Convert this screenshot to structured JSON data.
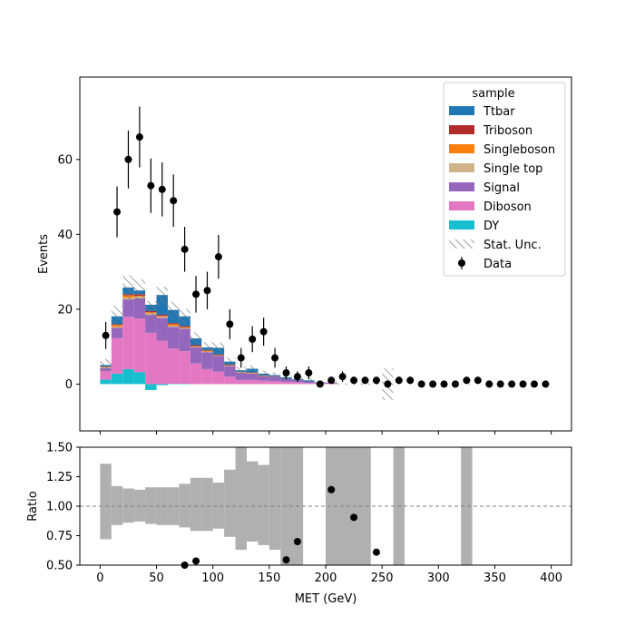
{
  "chart_data": [
    {
      "type": "bar",
      "stacked": true,
      "ylabel": "Events",
      "ylim": [
        -12.5,
        82
      ],
      "yticks": [
        0,
        20,
        40,
        60
      ],
      "xlim": [
        -18,
        418
      ],
      "bin_edges": [
        0,
        10,
        20,
        30,
        40,
        50,
        60,
        70,
        80,
        90,
        100,
        110,
        120,
        130,
        140,
        150,
        160,
        170,
        180,
        190,
        200,
        210,
        220,
        230,
        240,
        250,
        260,
        270,
        280,
        290,
        300,
        310,
        320,
        330,
        340,
        350,
        360,
        370,
        380,
        390,
        400
      ],
      "legend": {
        "title": "sample",
        "placement": "top-right",
        "entries": [
          {
            "label": "Ttbar",
            "color": "#1f77b4",
            "kind": "fill"
          },
          {
            "label": "Triboson",
            "color": "#b22a2a",
            "kind": "fill"
          },
          {
            "label": "Singleboson",
            "color": "#ff7f0e",
            "kind": "fill"
          },
          {
            "label": "Single top",
            "color": "#d2b48c",
            "kind": "fill"
          },
          {
            "label": "Signal",
            "color": "#9467bd",
            "kind": "fill"
          },
          {
            "label": "Diboson",
            "color": "#e377c2",
            "kind": "fill"
          },
          {
            "label": "DY",
            "color": "#17becf",
            "kind": "fill"
          },
          {
            "label": "Stat. Unc.",
            "color": "#888888",
            "kind": "hatch"
          },
          {
            "label": "Data",
            "color": "#000000",
            "kind": "marker"
          }
        ]
      },
      "series": [
        {
          "name": "DY",
          "color": "#17becf",
          "values": [
            1.2,
            2.8,
            4.0,
            3.2,
            -1.6,
            -0.3,
            0.1,
            0.1,
            0,
            0,
            0,
            0,
            0,
            0,
            0,
            0,
            0,
            0,
            0,
            0,
            0,
            0,
            0,
            0,
            0,
            0,
            0,
            0,
            0,
            0,
            0,
            0,
            0,
            0,
            0,
            0,
            0,
            0,
            0,
            0
          ]
        },
        {
          "name": "Diboson",
          "color": "#e377c2",
          "values": [
            2.3,
            9.5,
            14.0,
            14.3,
            13.7,
            11.6,
            9.4,
            8.7,
            5.5,
            4.0,
            3.3,
            2.0,
            1.1,
            1.1,
            0.9,
            0.8,
            0.6,
            0.5,
            0.3,
            0.2,
            0.2,
            0,
            0,
            0,
            0,
            0,
            0,
            0,
            0,
            0,
            0,
            0,
            0,
            0,
            0,
            0,
            0,
            0,
            0,
            0
          ]
        },
        {
          "name": "Signal",
          "color": "#9467bd",
          "values": [
            0.8,
            2.7,
            4.6,
            5.4,
            4.8,
            6.1,
            5.8,
            6.0,
            4.3,
            4.5,
            4.2,
            2.8,
            1.9,
            1.7,
            1.2,
            1.2,
            0.7,
            0.6,
            0.4,
            0.2,
            0.2,
            0,
            0,
            0,
            0,
            0,
            0,
            0,
            0,
            0,
            0,
            0,
            0,
            0,
            0,
            0,
            0,
            0,
            0,
            0
          ]
        },
        {
          "name": "Single top",
          "color": "#d2b48c",
          "values": [
            0.2,
            0.3,
            0.5,
            0.5,
            0.4,
            0.3,
            0.3,
            0.2,
            0.2,
            0.2,
            0.1,
            0.1,
            0.1,
            0.1,
            0,
            0,
            0,
            0,
            0,
            0,
            0,
            0,
            0,
            0,
            0,
            0,
            0,
            0,
            0,
            0,
            0,
            0,
            0,
            0,
            0,
            0,
            0,
            0,
            0,
            0
          ]
        },
        {
          "name": "Singleboson",
          "color": "#ff7f0e",
          "values": [
            0.1,
            0.5,
            0.6,
            0.2,
            0.3,
            0.2,
            0.4,
            0.2,
            0.1,
            0.2,
            0.1,
            0.1,
            0.1,
            0.1,
            0.1,
            0,
            0,
            0,
            0,
            0,
            0,
            0,
            0,
            0,
            0,
            0,
            0,
            0,
            0,
            0,
            0,
            0,
            0,
            0,
            0,
            0,
            0,
            0,
            0,
            0
          ]
        },
        {
          "name": "Triboson",
          "color": "#b22a2a",
          "values": [
            0.1,
            0.2,
            0.3,
            0.4,
            0.3,
            0.3,
            0.3,
            0.3,
            0.3,
            0.2,
            0.2,
            0.2,
            0.1,
            0.1,
            0.1,
            0.1,
            0.1,
            0,
            0,
            0,
            0,
            0,
            0,
            0,
            0,
            0,
            0,
            0,
            0,
            0,
            0,
            0,
            0,
            0,
            0,
            0,
            0,
            0,
            0,
            0
          ]
        },
        {
          "name": "Ttbar",
          "color": "#1f77b4",
          "values": [
            0.4,
            2.1,
            1.8,
            1.0,
            1.7,
            5.3,
            3.5,
            2.6,
            1.8,
            0.7,
            1.8,
            0.8,
            0.4,
            1.0,
            0.5,
            0.3,
            0.4,
            0.2,
            0.3,
            0.1,
            0,
            0,
            0,
            0,
            0,
            0,
            0,
            0,
            0,
            0,
            0,
            0,
            0,
            0,
            0,
            0,
            0,
            0,
            0,
            0
          ]
        }
      ],
      "stat_unc": [
        1.6,
        2.8,
        3.3,
        3.0,
        2.6,
        2.5,
        2.2,
        2.0,
        1.6,
        1.4,
        1.4,
        1.1,
        0.9,
        0.9,
        0.8,
        0.7,
        0.5,
        0.4,
        0.4,
        0.3,
        0.3,
        0.2,
        0.2,
        0.2,
        0.2,
        4.2,
        0,
        0,
        0,
        0,
        0,
        0,
        0.1,
        0,
        0,
        0,
        0,
        0,
        0,
        0
      ],
      "data": {
        "name": "Data",
        "x": [
          5,
          15,
          25,
          35,
          45,
          55,
          65,
          75,
          85,
          95,
          105,
          115,
          125,
          135,
          145,
          155,
          165,
          175,
          185,
          195,
          205,
          215,
          225,
          235,
          245,
          255,
          265,
          275,
          285,
          295,
          305,
          315,
          325,
          335,
          345,
          355,
          365,
          375,
          385,
          395
        ],
        "y": [
          13,
          46,
          60,
          66,
          53,
          52,
          49,
          36,
          24,
          25,
          34,
          16,
          7,
          12,
          14,
          7,
          3,
          2,
          3,
          0,
          1,
          2,
          1,
          1,
          1,
          0,
          1,
          1,
          0,
          0,
          0,
          0,
          1,
          1,
          0,
          0,
          0,
          0,
          0,
          0
        ]
      }
    },
    {
      "type": "scatter",
      "xlabel": "MET (GeV)",
      "ylabel": "Ratio",
      "ylim": [
        0.5,
        1.5
      ],
      "yticks": [
        "0.50",
        "0.75",
        "1.00",
        "1.25",
        "1.50"
      ],
      "xticks": [
        "0",
        "50",
        "100",
        "150",
        "200",
        "250",
        "300",
        "350",
        "400"
      ],
      "xtick_values": [
        0,
        50,
        100,
        150,
        200,
        250,
        300,
        350,
        400
      ],
      "reference_line": 1.0,
      "band_color": "#b0b0b0",
      "unc_band": [
        [
          0,
          10,
          0.72,
          1.36
        ],
        [
          10,
          20,
          0.84,
          1.17
        ],
        [
          20,
          30,
          0.86,
          1.15
        ],
        [
          30,
          40,
          0.87,
          1.14
        ],
        [
          40,
          50,
          0.85,
          1.16
        ],
        [
          50,
          60,
          0.84,
          1.16
        ],
        [
          60,
          70,
          0.84,
          1.16
        ],
        [
          70,
          80,
          0.82,
          1.19
        ],
        [
          80,
          90,
          0.79,
          1.24
        ],
        [
          90,
          100,
          0.79,
          1.24
        ],
        [
          100,
          110,
          0.81,
          1.2
        ],
        [
          110,
          120,
          0.74,
          1.31
        ],
        [
          120,
          130,
          0.63,
          1.5
        ],
        [
          130,
          140,
          0.7,
          1.38
        ],
        [
          140,
          150,
          0.67,
          1.35
        ],
        [
          150,
          160,
          0.63,
          1.5
        ],
        [
          160,
          180,
          0.5,
          1.5
        ],
        [
          200,
          240,
          0.5,
          1.5
        ],
        [
          260,
          270,
          0.5,
          1.5
        ],
        [
          320,
          330,
          0.5,
          1.5
        ]
      ],
      "points": {
        "x": [
          75,
          85,
          165,
          175,
          205,
          225,
          245
        ],
        "y": [
          0.5,
          0.535,
          0.545,
          0.7,
          1.14,
          0.905,
          0.61
        ]
      }
    }
  ]
}
